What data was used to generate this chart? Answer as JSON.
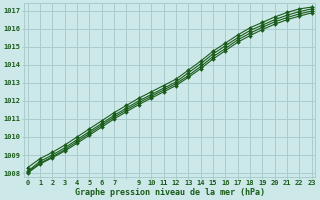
{
  "xlabel": "Graphe pression niveau de la mer (hPa)",
  "bg_color": "#cce8e8",
  "grid_color": "#aacccc",
  "line_color": "#1a5c1a",
  "xlim_min": -0.3,
  "xlim_max": 23.3,
  "ylim_min": 1007.8,
  "ylim_max": 1017.4,
  "yticks": [
    1008,
    1009,
    1010,
    1011,
    1012,
    1013,
    1014,
    1015,
    1016,
    1017
  ],
  "xtick_labels": [
    "0",
    "1",
    "2",
    "3",
    "4",
    "5",
    "6",
    "7",
    "",
    "9",
    "10",
    "11",
    "12",
    "13",
    "14",
    "15",
    "16",
    "17",
    "18",
    "19",
    "20",
    "21",
    "22",
    "23"
  ],
  "series": [
    [
      1008.3,
      1008.8,
      1009.15,
      1009.55,
      1010.0,
      1010.45,
      1010.9,
      1011.35,
      1011.75,
      1012.15,
      1012.5,
      1012.85,
      1013.2,
      1013.7,
      1014.2,
      1014.75,
      1015.2,
      1015.65,
      1016.05,
      1016.35,
      1016.65,
      1016.9,
      1017.1,
      1017.2
    ],
    [
      1008.1,
      1008.65,
      1009.0,
      1009.4,
      1009.85,
      1010.3,
      1010.75,
      1011.2,
      1011.6,
      1012.0,
      1012.35,
      1012.7,
      1013.05,
      1013.55,
      1014.05,
      1014.6,
      1015.05,
      1015.5,
      1015.9,
      1016.2,
      1016.5,
      1016.75,
      1016.95,
      1017.1
    ],
    [
      1008.05,
      1008.55,
      1008.9,
      1009.3,
      1009.75,
      1010.2,
      1010.65,
      1011.1,
      1011.5,
      1011.9,
      1012.25,
      1012.6,
      1012.95,
      1013.4,
      1013.9,
      1014.45,
      1014.9,
      1015.38,
      1015.75,
      1016.08,
      1016.38,
      1016.62,
      1016.82,
      1016.98
    ],
    [
      1008.0,
      1008.5,
      1008.85,
      1009.22,
      1009.65,
      1010.1,
      1010.55,
      1011.0,
      1011.4,
      1011.8,
      1012.15,
      1012.5,
      1012.85,
      1013.3,
      1013.78,
      1014.32,
      1014.78,
      1015.25,
      1015.62,
      1015.95,
      1016.25,
      1016.5,
      1016.7,
      1016.88
    ]
  ]
}
